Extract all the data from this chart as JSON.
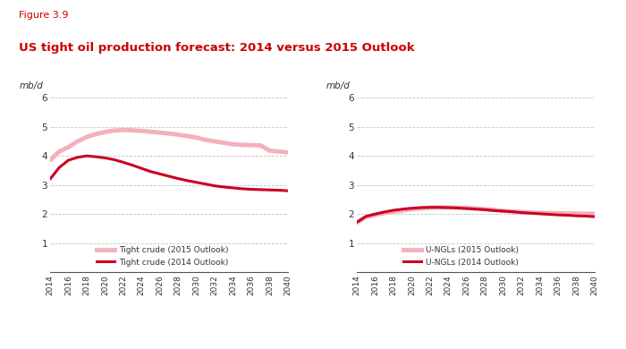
{
  "figure_label": "Figure 3.9",
  "title": "US tight oil production forecast: 2014 versus 2015 Outlook",
  "figure_label_color": "#cc0000",
  "title_color": "#cc0000",
  "ylabel": "mb/d",
  "ylim": [
    0,
    6
  ],
  "yticks": [
    0,
    1,
    2,
    3,
    4,
    5,
    6
  ],
  "years": [
    2014,
    2015,
    2016,
    2017,
    2018,
    2019,
    2020,
    2021,
    2022,
    2023,
    2024,
    2025,
    2026,
    2027,
    2028,
    2029,
    2030,
    2031,
    2032,
    2033,
    2034,
    2035,
    2036,
    2037,
    2038,
    2039,
    2040
  ],
  "left_2015": [
    3.85,
    4.15,
    4.3,
    4.5,
    4.65,
    4.75,
    4.82,
    4.87,
    4.89,
    4.88,
    4.86,
    4.83,
    4.8,
    4.77,
    4.73,
    4.68,
    4.63,
    4.55,
    4.5,
    4.45,
    4.4,
    4.38,
    4.37,
    4.36,
    4.18,
    4.15,
    4.12
  ],
  "left_2014": [
    3.2,
    3.6,
    3.85,
    3.95,
    4.0,
    3.97,
    3.93,
    3.87,
    3.78,
    3.68,
    3.57,
    3.46,
    3.38,
    3.3,
    3.22,
    3.15,
    3.09,
    3.03,
    2.97,
    2.93,
    2.9,
    2.87,
    2.85,
    2.84,
    2.83,
    2.82,
    2.8
  ],
  "right_2015": [
    1.7,
    1.9,
    1.97,
    2.03,
    2.08,
    2.12,
    2.17,
    2.2,
    2.22,
    2.23,
    2.23,
    2.22,
    2.21,
    2.19,
    2.17,
    2.14,
    2.11,
    2.09,
    2.07,
    2.05,
    2.04,
    2.04,
    2.03,
    2.02,
    2.02,
    2.01,
    2.01
  ],
  "right_2014": [
    1.72,
    1.92,
    2.0,
    2.07,
    2.13,
    2.17,
    2.2,
    2.22,
    2.23,
    2.23,
    2.22,
    2.21,
    2.19,
    2.17,
    2.15,
    2.12,
    2.1,
    2.08,
    2.05,
    2.03,
    2.01,
    1.99,
    1.97,
    1.96,
    1.94,
    1.93,
    1.91
  ],
  "color_2015": "#f4b0bc",
  "color_2014": "#cc0022",
  "left_legend_2015": "Tight crude (2015 Outlook)",
  "left_legend_2014": "Tight crude (2014 Outlook)",
  "right_legend_2015": "U-NGLs (2015 Outlook)",
  "right_legend_2014": "U-NGLs (2014 Outlook)",
  "xtick_years": [
    2014,
    2016,
    2018,
    2020,
    2022,
    2024,
    2026,
    2028,
    2030,
    2032,
    2034,
    2036,
    2038,
    2040
  ],
  "background_color": "#ffffff",
  "grid_color": "#aaaaaa"
}
